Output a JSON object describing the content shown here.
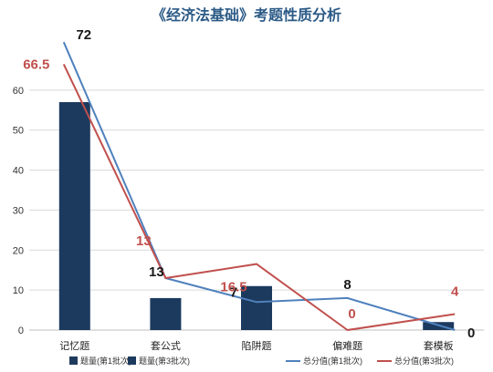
{
  "chart_data": {
    "type": "bar",
    "title": "《经济法基础》考题性质分析",
    "categories": [
      "记忆题",
      "套公式",
      "陷阱题",
      "偏难题",
      "套模板"
    ],
    "ylim": [
      0,
      70
    ],
    "yticks": [
      0,
      10,
      20,
      30,
      40,
      50,
      60
    ],
    "grid": true,
    "legend_placement": "bottom",
    "bar_series": [
      {
        "name": "题量(第1批次)",
        "values": [
          0,
          0,
          0,
          0,
          0
        ],
        "color": "#1f3b5c"
      },
      {
        "name": "题量(第3批次)",
        "values": [
          57,
          8,
          11,
          0,
          2
        ],
        "color": "#1c3a5e"
      }
    ],
    "line_series": [
      {
        "name": "总分值(第1批次)",
        "values": [
          72,
          13,
          7,
          8,
          0
        ],
        "color": "#4f81bd",
        "labels": [
          "72",
          "13",
          "7",
          "8",
          "0"
        ]
      },
      {
        "name": "总分值(第3批次)",
        "values": [
          66.5,
          13,
          16.5,
          0,
          4
        ],
        "color": "#c0504d",
        "labels": [
          "66.5",
          "13",
          "16.5",
          "0",
          "4"
        ]
      }
    ]
  }
}
